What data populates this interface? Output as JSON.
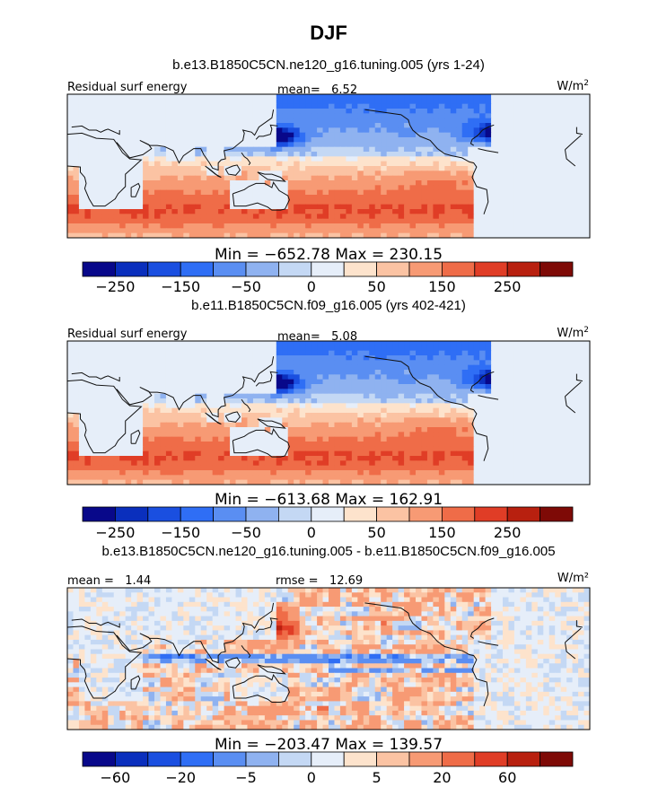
{
  "figure": {
    "title": "DJF"
  },
  "chart_data": [
    {
      "type": "heatmap",
      "title": "b.e13.B1850C5CN.ne120_g16.tuning.005 (yrs 1-24)",
      "left_label": "Residual surf energy",
      "units": "W/m²",
      "stat_text": "mean=   6.52",
      "mean": 6.52,
      "min": -652.78,
      "max": 230.15,
      "minmax_text": "Min = −652.78 Max = 230.15",
      "colorbar_levels": [
        -300,
        -250,
        -200,
        -150,
        -100,
        -50,
        0,
        25,
        50,
        100,
        150,
        200,
        250,
        300
      ],
      "colorbar_tick_labels": [
        "−250",
        "−150",
        "−50",
        "0",
        "50",
        "150",
        "250"
      ],
      "colorbar_tick_box_index": [
        1,
        3,
        5,
        7,
        9,
        11,
        13
      ],
      "colors": [
        "#08088a",
        "#0a2fbd",
        "#1a4fe0",
        "#2f6ef5",
        "#5a8ef2",
        "#8fb2f0",
        "#c4d8f4",
        "#e6eef9",
        "#fde3cc",
        "#fbc3a3",
        "#f79a74",
        "#ef6c48",
        "#e03d26",
        "#b8200f",
        "#7e0a06"
      ],
      "pattern": "mean"
    },
    {
      "type": "heatmap",
      "title": "b.e11.B1850C5CN.f09_g16.005 (yrs 402-421)",
      "left_label": "Residual surf energy",
      "units": "W/m²",
      "stat_text": "mean=   5.08",
      "mean": 5.08,
      "min": -613.68,
      "max": 162.91,
      "minmax_text": "Min = −613.68 Max = 162.91",
      "colorbar_levels": [
        -300,
        -250,
        -200,
        -150,
        -100,
        -50,
        0,
        25,
        50,
        100,
        150,
        200,
        250,
        300
      ],
      "colorbar_tick_labels": [
        "−250",
        "−150",
        "−50",
        "0",
        "50",
        "150",
        "250"
      ],
      "colorbar_tick_box_index": [
        1,
        3,
        5,
        7,
        9,
        11,
        13
      ],
      "colors": [
        "#08088a",
        "#0a2fbd",
        "#1a4fe0",
        "#2f6ef5",
        "#5a8ef2",
        "#8fb2f0",
        "#c4d8f4",
        "#e6eef9",
        "#fde3cc",
        "#fbc3a3",
        "#f79a74",
        "#ef6c48",
        "#e03d26",
        "#b8200f",
        "#7e0a06"
      ],
      "pattern": "mean"
    },
    {
      "type": "heatmap",
      "title": "b.e13.B1850C5CN.ne120_g16.tuning.005 - b.e11.B1850C5CN.f09_g16.005",
      "units": "W/m²",
      "stat_text": "mean =   1.44",
      "rmse_text": "rmse =   12.69",
      "mean": 1.44,
      "rmse": 12.69,
      "min": -203.47,
      "max": 139.57,
      "minmax_text": "Min = −203.47 Max = 139.57",
      "colorbar_levels": [
        -80,
        -60,
        -40,
        -20,
        -10,
        -5,
        0,
        2,
        5,
        10,
        20,
        40,
        60,
        80
      ],
      "colorbar_tick_labels": [
        "−60",
        "−20",
        "−5",
        "0",
        "5",
        "20",
        "60"
      ],
      "colorbar_tick_box_index": [
        1,
        3,
        5,
        7,
        9,
        11,
        13
      ],
      "colors": [
        "#08088a",
        "#0a2fbd",
        "#1a4fe0",
        "#2f6ef5",
        "#5a8ef2",
        "#8fb2f0",
        "#c4d8f4",
        "#e6eef9",
        "#fde3cc",
        "#fbc3a3",
        "#f79a74",
        "#ef6c48",
        "#e03d26",
        "#b8200f",
        "#7e0a06"
      ],
      "pattern": "diff"
    }
  ]
}
